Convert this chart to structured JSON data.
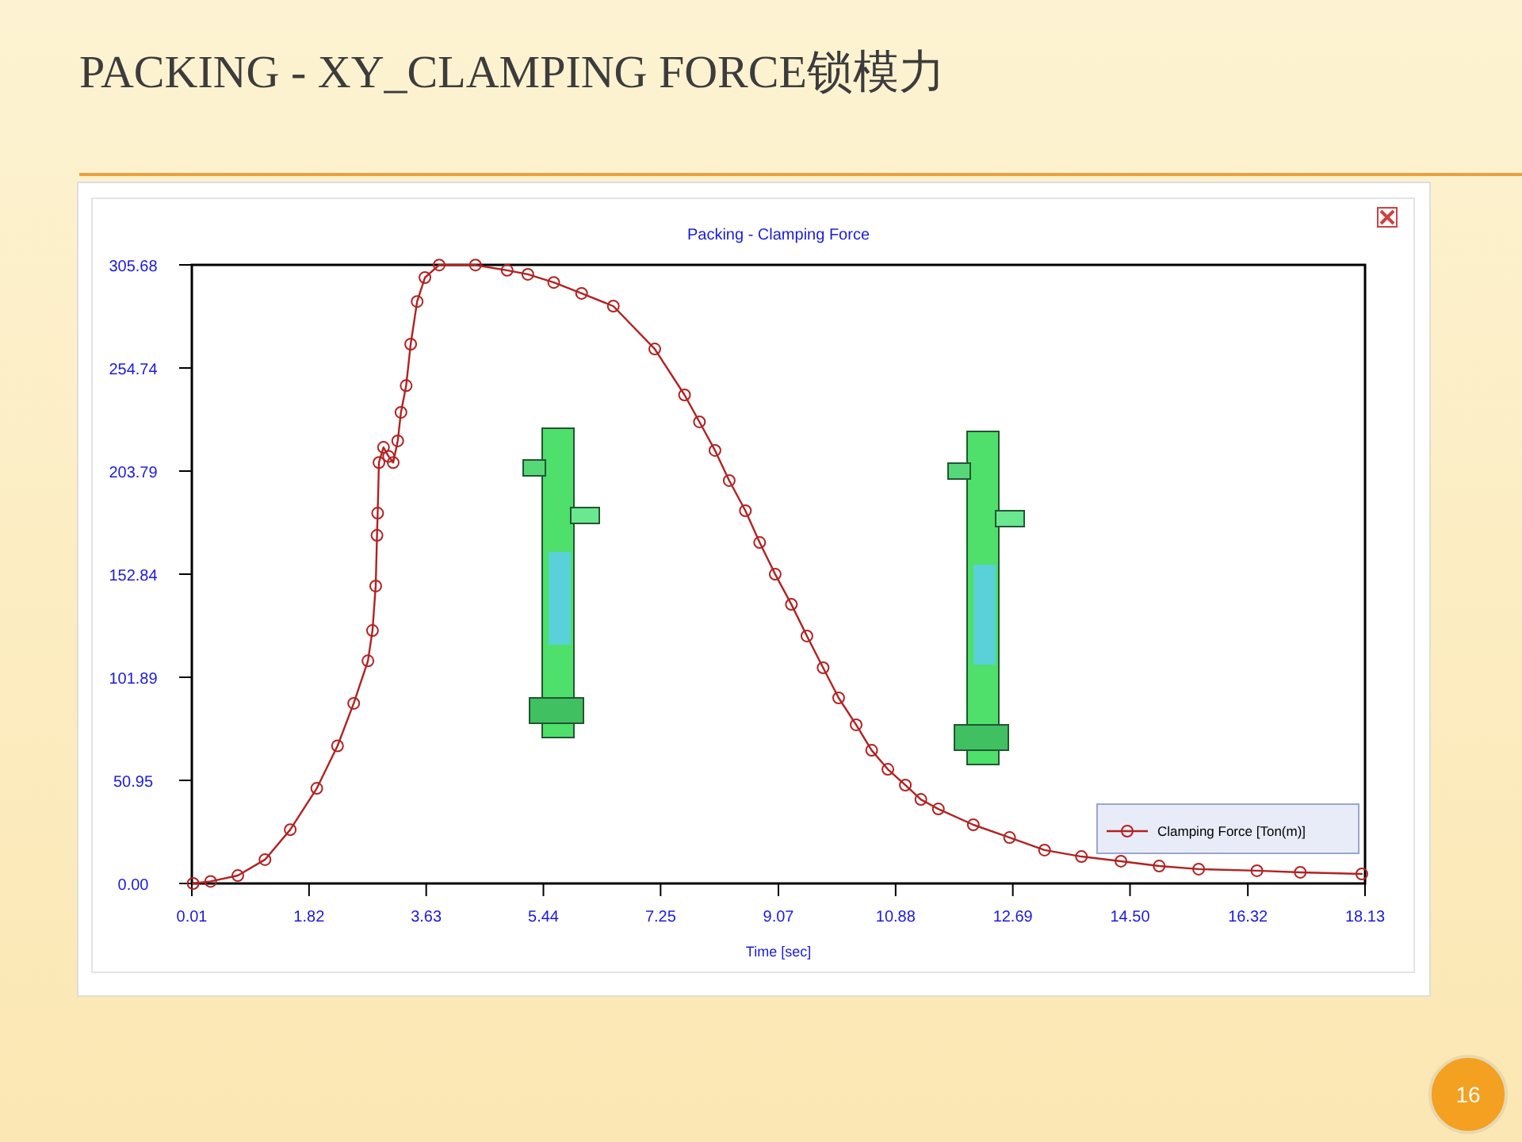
{
  "chart_data": {
    "type": "line",
    "title": "PACKING - XY_CLAMPING FORCE锁模力",
    "subtitle": "Packing - Clamping Force",
    "xlabel": "Time [sec]",
    "annotations": [
      "16"
    ],
    "xlim": [
      0.01,
      18.13
    ],
    "xticks": [
      0.01,
      1.82,
      3.63,
      5.44,
      7.25,
      9.07,
      10.88,
      12.69,
      {
        "value": 14.5,
        "label": "14.50"
      },
      16.32,
      18.13
    ],
    "ylim": [
      0,
      305.68
    ],
    "yticks": [
      {
        "value": 0,
        "label": "0.00"
      },
      50.95,
      101.89,
      152.84,
      203.79,
      254.74,
      305.68
    ],
    "grid": false,
    "legend": "bottom right",
    "marker": "circle",
    "line_style": "solid",
    "series": [
      {
        "name": "Clamping Force [Ton(m)]",
        "color": "#b22222",
        "x": [
          0.03,
          0.3,
          0.72,
          1.14,
          1.53,
          1.94,
          2.26,
          2.51,
          2.73,
          2.8,
          2.85,
          2.87,
          2.88,
          2.9,
          2.97,
          3.05,
          3.12,
          3.19,
          3.24,
          3.32,
          3.39,
          3.49,
          3.61,
          3.83,
          4.39,
          4.88,
          5.2,
          5.6,
          6.03,
          6.52,
          7.16,
          7.62,
          7.85,
          8.09,
          8.31,
          8.56,
          8.78,
          9.02,
          9.27,
          9.51,
          9.76,
          10.0,
          10.27,
          10.51,
          10.76,
          11.03,
          11.27,
          11.54,
          12.08,
          12.64,
          13.18,
          13.75,
          14.36,
          14.95,
          15.56,
          16.46,
          17.13,
          18.08
        ],
        "values": [
          0,
          1,
          3.9,
          11.8,
          26.6,
          47,
          68,
          89,
          110,
          125,
          147,
          172,
          183,
          208,
          215.5,
          211,
          208,
          218.7,
          232.8,
          246,
          266.5,
          287.6,
          299.4,
          305.6,
          305.6,
          303,
          301,
          297,
          291.6,
          285.3,
          264.1,
          241.4,
          228.1,
          214.0,
          199.1,
          184.2,
          168.5,
          152.8,
          137.9,
          122.3,
          106.6,
          91.7,
          78.4,
          65.8,
          56.4,
          48.6,
          41.5,
          36.8,
          29.0,
          22.7,
          16.5,
          13.3,
          11.0,
          8.6,
          7.1,
          6.3,
          5.5,
          4.7
        ]
      }
    ]
  }
}
